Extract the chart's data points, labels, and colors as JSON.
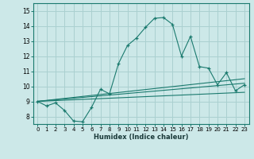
{
  "xlabel": "Humidex (Indice chaleur)",
  "bg_color": "#cce8e8",
  "grid_color": "#aad0d0",
  "line_color": "#1a7a6e",
  "xlim": [
    -0.5,
    23.5
  ],
  "ylim": [
    7.5,
    15.5
  ],
  "xticks": [
    0,
    1,
    2,
    3,
    4,
    5,
    6,
    7,
    8,
    9,
    10,
    11,
    12,
    13,
    14,
    15,
    16,
    17,
    18,
    19,
    20,
    21,
    22,
    23
  ],
  "yticks": [
    8,
    9,
    10,
    11,
    12,
    13,
    14,
    15
  ],
  "series1_x": [
    0,
    1,
    2,
    3,
    4,
    5,
    6,
    7,
    8,
    9,
    10,
    11,
    12,
    13,
    14,
    15,
    16,
    17,
    18,
    19,
    20,
    21,
    22,
    23
  ],
  "series1_y": [
    9.0,
    8.7,
    8.9,
    8.4,
    7.7,
    7.65,
    8.6,
    9.8,
    9.5,
    11.5,
    12.7,
    13.2,
    13.9,
    14.5,
    14.55,
    14.1,
    12.0,
    13.3,
    11.3,
    11.2,
    10.1,
    10.9,
    9.7,
    10.1
  ],
  "series2_x": [
    0,
    23
  ],
  "series2_y": [
    9.0,
    10.2
  ],
  "series3_x": [
    0,
    23
  ],
  "series3_y": [
    9.0,
    10.5
  ],
  "series4_x": [
    0,
    23
  ],
  "series4_y": [
    9.0,
    9.6
  ]
}
